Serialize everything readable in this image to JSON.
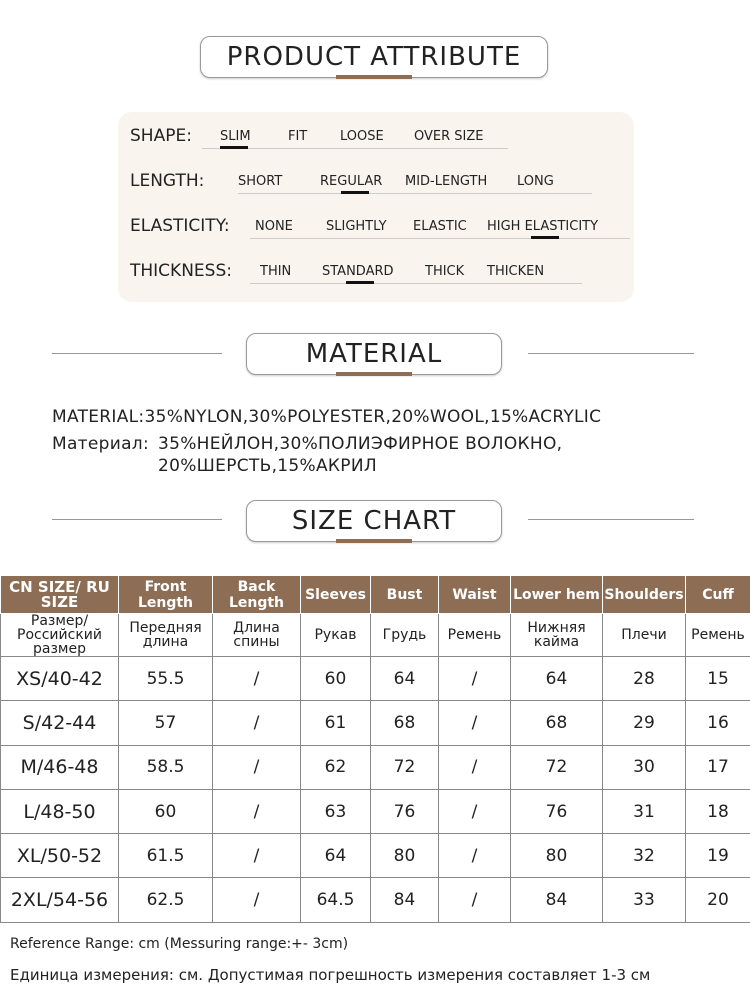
{
  "attributes": {
    "title": "PRODUCT ATTRIBUTE",
    "rows": [
      {
        "label": "SHAPE:",
        "options": [
          "SLIM",
          "FIT",
          "LOOSE",
          "OVER SIZE"
        ],
        "selected": "SLIM"
      },
      {
        "label": "LENGTH:",
        "options": [
          "SHORT",
          "REGULAR",
          "MID-LENGTH",
          "LONG"
        ],
        "selected": "REGULAR"
      },
      {
        "label": "ELASTICITY:",
        "options": [
          "NONE",
          "SLIGHTLY",
          "ELASTIC",
          "HIGH ELASTICITY"
        ],
        "selected": "HIGH ELASTICITY"
      },
      {
        "label": "THICKNESS:",
        "options": [
          "THIN",
          "STANDARD",
          "THICK",
          "THICKEN"
        ],
        "selected": "STANDARD"
      }
    ]
  },
  "material": {
    "title": "MATERIAL",
    "en": "MATERIAL:35%NYLON,30%POLYESTER,20%WOOL,15%ACRYLIC",
    "ru_label": "Материал:",
    "ru_line1": "35%НЕЙЛОН,30%ПОЛИЭФИРНОЕ ВОЛОКНО,",
    "ru_line2": "20%ШЕРСТЬ,15%АКРИЛ"
  },
  "size_chart": {
    "title": "SIZE CHART",
    "headers_en": [
      "CN SIZE/ RU SIZE",
      "Front Length",
      "Back Length",
      "Sleeves",
      "Bust",
      "Waist",
      "Lower hem",
      "Shoulders",
      "Cuff"
    ],
    "headers_ru": [
      "Размер/ Российский размер",
      "Передняя длина",
      "Длина спины",
      "Рукав",
      "Грудь",
      "Ремень",
      "Нижняя кайма",
      "Плечи",
      "Ремень"
    ],
    "rows": [
      [
        "XS/40-42",
        "55.5",
        "/",
        "60",
        "64",
        "/",
        "64",
        "28",
        "15"
      ],
      [
        "S/42-44",
        "57",
        "/",
        "61",
        "68",
        "/",
        "68",
        "29",
        "16"
      ],
      [
        "M/46-48",
        "58.5",
        "/",
        "62",
        "72",
        "/",
        "72",
        "30",
        "17"
      ],
      [
        "L/48-50",
        "60",
        "/",
        "63",
        "76",
        "/",
        "76",
        "31",
        "18"
      ],
      [
        "XL/50-52",
        "61.5",
        "/",
        "64",
        "80",
        "/",
        "80",
        "32",
        "19"
      ],
      [
        "2XL/54-56",
        "62.5",
        "/",
        "64.5",
        "84",
        "/",
        "84",
        "33",
        "20"
      ]
    ]
  },
  "footer": {
    "en": "Reference Range: cm (Messuring range:+- 3cm)",
    "ru": "Единица измерения: см. Допустимая погрешность измерения составляет 1-3 см"
  },
  "colors": {
    "accent": "#8d6e55",
    "panel": "#faf4ef"
  }
}
